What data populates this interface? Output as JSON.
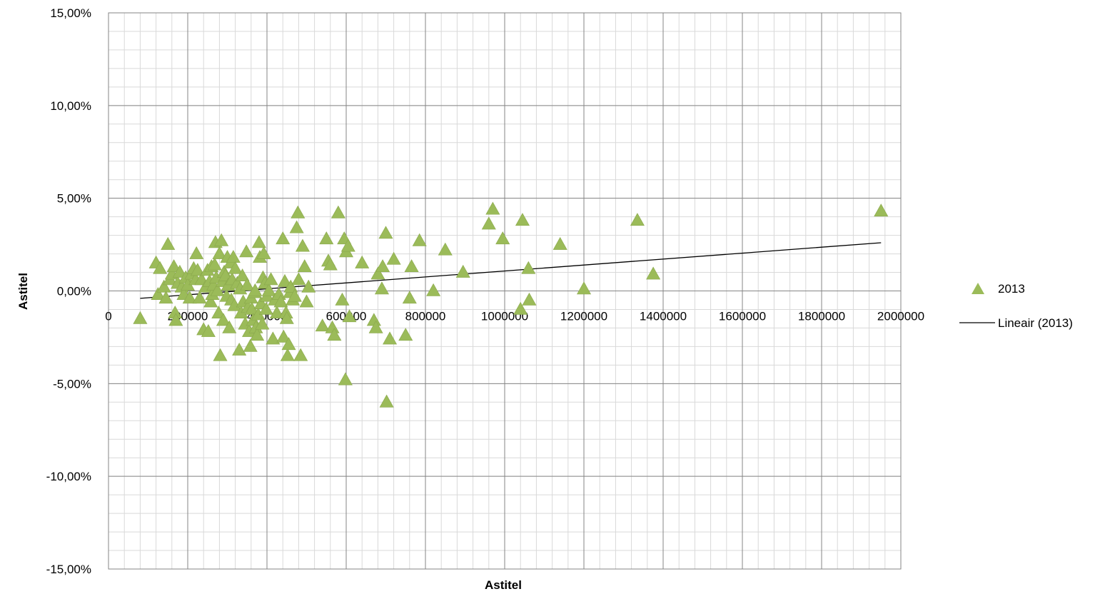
{
  "chart_data": {
    "type": "scatter",
    "xlabel": "Astitel",
    "ylabel": "Astitel",
    "xlim": [
      0,
      2000000
    ],
    "ylim": [
      -15,
      15
    ],
    "x_ticks": [
      0,
      200000,
      400000,
      600000,
      800000,
      1000000,
      1200000,
      1400000,
      1600000,
      1800000,
      2000000
    ],
    "x_tick_labels": [
      "0",
      "200000",
      "400000",
      "600000",
      "800000",
      "1000000",
      "1200000",
      "1400000",
      "1600000",
      "1800000",
      "2000000"
    ],
    "y_ticks": [
      15,
      10,
      5,
      0,
      -5,
      -10,
      -15
    ],
    "y_tick_labels": [
      "15,00%",
      "10,00%",
      "5,00%",
      "0,00%",
      "-5,00%",
      "-10,00%",
      "-15,00%"
    ],
    "grid": true,
    "legend_position": "right",
    "series": [
      {
        "name": "2013",
        "kind": "scatter",
        "marker": "triangle",
        "color": "#9BBB59",
        "points": [
          [
            80000,
            -1.5
          ],
          [
            120000,
            1.5
          ],
          [
            125000,
            -0.2
          ],
          [
            130000,
            1.2
          ],
          [
            140000,
            0.2
          ],
          [
            145000,
            -0.4
          ],
          [
            150000,
            2.5
          ],
          [
            155000,
            0.6
          ],
          [
            160000,
            0.9
          ],
          [
            165000,
            1.3
          ],
          [
            168000,
            -1.2
          ],
          [
            170000,
            -1.6
          ],
          [
            175000,
            0.4
          ],
          [
            180000,
            1.0
          ],
          [
            185000,
            0.2
          ],
          [
            190000,
            -0.2
          ],
          [
            195000,
            0.7
          ],
          [
            200000,
            0.3
          ],
          [
            205000,
            -0.4
          ],
          [
            210000,
            0.9
          ],
          [
            215000,
            1.2
          ],
          [
            220000,
            0.6
          ],
          [
            222000,
            2.0
          ],
          [
            225000,
            1.1
          ],
          [
            230000,
            -0.4
          ],
          [
            235000,
            0.6
          ],
          [
            240000,
            -2.1
          ],
          [
            245000,
            0.2
          ],
          [
            250000,
            1.1
          ],
          [
            252000,
            -2.2
          ],
          [
            255000,
            0.5
          ],
          [
            258000,
            -0.6
          ],
          [
            260000,
            1.3
          ],
          [
            262000,
            -0.2
          ],
          [
            265000,
            0.3
          ],
          [
            268000,
            1.4
          ],
          [
            270000,
            2.6
          ],
          [
            272000,
            0.7
          ],
          [
            275000,
            0.0
          ],
          [
            278000,
            -1.2
          ],
          [
            280000,
            2.0
          ],
          [
            282000,
            -3.5
          ],
          [
            285000,
            2.7
          ],
          [
            288000,
            0.5
          ],
          [
            290000,
            -1.6
          ],
          [
            292000,
            1.0
          ],
          [
            295000,
            0.8
          ],
          [
            298000,
            -0.3
          ],
          [
            300000,
            1.8
          ],
          [
            302000,
            0.3
          ],
          [
            305000,
            -2.0
          ],
          [
            308000,
            1.5
          ],
          [
            310000,
            -0.5
          ],
          [
            312000,
            0.6
          ],
          [
            315000,
            1.8
          ],
          [
            318000,
            -0.8
          ],
          [
            320000,
            1.2
          ],
          [
            325000,
            0.4
          ],
          [
            330000,
            -3.2
          ],
          [
            332000,
            0.1
          ],
          [
            335000,
            -1.2
          ],
          [
            338000,
            0.8
          ],
          [
            340000,
            -0.6
          ],
          [
            345000,
            -1.8
          ],
          [
            348000,
            2.1
          ],
          [
            350000,
            0.3
          ],
          [
            352000,
            -0.9
          ],
          [
            355000,
            -2.2
          ],
          [
            358000,
            -3.0
          ],
          [
            360000,
            -0.4
          ],
          [
            362000,
            -1.0
          ],
          [
            365000,
            -1.6
          ],
          [
            368000,
            -0.1
          ],
          [
            370000,
            0.0
          ],
          [
            372000,
            -2.0
          ],
          [
            375000,
            -2.4
          ],
          [
            378000,
            -1.3
          ],
          [
            380000,
            2.6
          ],
          [
            382000,
            1.8
          ],
          [
            385000,
            -0.7
          ],
          [
            388000,
            -1.8
          ],
          [
            390000,
            0.7
          ],
          [
            392000,
            2.0
          ],
          [
            395000,
            0.4
          ],
          [
            398000,
            -1.0
          ],
          [
            400000,
            -0.3
          ],
          [
            405000,
            0.0
          ],
          [
            410000,
            0.6
          ],
          [
            415000,
            -2.6
          ],
          [
            420000,
            -0.5
          ],
          [
            425000,
            -1.2
          ],
          [
            430000,
            -0.2
          ],
          [
            435000,
            -0.6
          ],
          [
            440000,
            2.8
          ],
          [
            442000,
            -2.5
          ],
          [
            445000,
            0.5
          ],
          [
            448000,
            -1.2
          ],
          [
            450000,
            -1.5
          ],
          [
            452000,
            -3.5
          ],
          [
            455000,
            -2.9
          ],
          [
            458000,
            -0.1
          ],
          [
            460000,
            0.2
          ],
          [
            465000,
            -0.5
          ],
          [
            470000,
            -0.3
          ],
          [
            475000,
            3.4
          ],
          [
            478000,
            4.2
          ],
          [
            480000,
            0.6
          ],
          [
            485000,
            -3.5
          ],
          [
            490000,
            2.4
          ],
          [
            495000,
            1.3
          ],
          [
            500000,
            -0.6
          ],
          [
            505000,
            0.2
          ],
          [
            540000,
            -1.9
          ],
          [
            550000,
            2.8
          ],
          [
            555000,
            1.6
          ],
          [
            560000,
            1.4
          ],
          [
            565000,
            -2.0
          ],
          [
            570000,
            -2.4
          ],
          [
            580000,
            4.2
          ],
          [
            590000,
            -0.5
          ],
          [
            595000,
            2.8
          ],
          [
            598000,
            -4.8
          ],
          [
            600000,
            2.1
          ],
          [
            605000,
            2.4
          ],
          [
            608000,
            -1.4
          ],
          [
            640000,
            1.5
          ],
          [
            670000,
            -1.6
          ],
          [
            675000,
            -2.0
          ],
          [
            680000,
            0.9
          ],
          [
            690000,
            0.1
          ],
          [
            692000,
            1.3
          ],
          [
            700000,
            3.1
          ],
          [
            702000,
            -6.0
          ],
          [
            710000,
            -2.6
          ],
          [
            720000,
            1.7
          ],
          [
            750000,
            -2.4
          ],
          [
            760000,
            -0.4
          ],
          [
            765000,
            1.3
          ],
          [
            785000,
            2.7
          ],
          [
            820000,
            0.0
          ],
          [
            850000,
            2.2
          ],
          [
            895000,
            1.0
          ],
          [
            960000,
            3.6
          ],
          [
            970000,
            4.4
          ],
          [
            995000,
            2.8
          ],
          [
            1040000,
            -1.0
          ],
          [
            1045000,
            3.8
          ],
          [
            1060000,
            1.2
          ],
          [
            1062000,
            -0.5
          ],
          [
            1140000,
            2.5
          ],
          [
            1200000,
            0.1
          ],
          [
            1335000,
            3.8
          ],
          [
            1375000,
            0.9
          ],
          [
            1950000,
            4.3
          ]
        ]
      },
      {
        "name": "Lineair (2013)",
        "kind": "line",
        "color": "#000000",
        "points": [
          [
            80000,
            -0.4
          ],
          [
            1950000,
            2.6
          ]
        ]
      }
    ]
  }
}
